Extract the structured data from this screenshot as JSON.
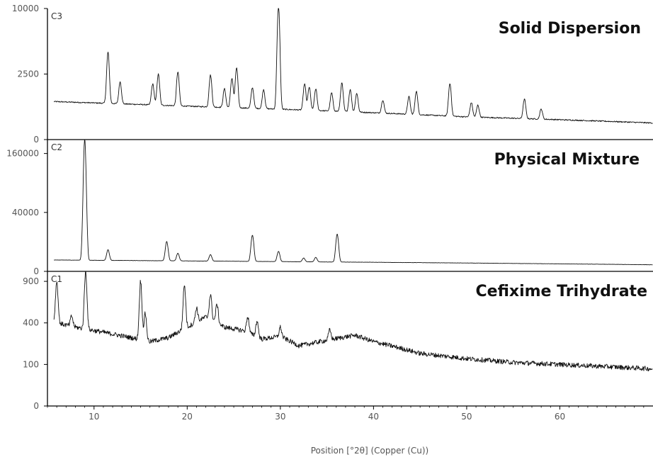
{
  "chart_data": {
    "type": "line",
    "xlabel": "Position [°2θ] (Copper (Cu))",
    "x_ticks": [
      10,
      20,
      30,
      40,
      50,
      60
    ],
    "xlim": [
      5,
      70
    ],
    "panels": [
      {
        "id": "C3",
        "title": "Solid Dispersion",
        "y_ticks": [
          0,
          2500,
          10000
        ],
        "ylim": [
          0,
          10000
        ],
        "y_scale": "sqrt",
        "baseline": [
          [
            5,
            850
          ],
          [
            20,
            650
          ],
          [
            35,
            480
          ],
          [
            50,
            300
          ],
          [
            70,
            160
          ]
        ],
        "peaks": [
          [
            11.5,
            3700
          ],
          [
            12.8,
            1200
          ],
          [
            16.3,
            1100
          ],
          [
            16.9,
            1800
          ],
          [
            19.0,
            2000
          ],
          [
            22.5,
            1800
          ],
          [
            24.0,
            900
          ],
          [
            24.8,
            1600
          ],
          [
            25.3,
            2400
          ],
          [
            27.0,
            1000
          ],
          [
            28.2,
            900
          ],
          [
            29.8,
            10000
          ],
          [
            32.6,
            1300
          ],
          [
            33.1,
            1100
          ],
          [
            33.8,
            1000
          ],
          [
            35.5,
            800
          ],
          [
            36.6,
            1400
          ],
          [
            37.5,
            1000
          ],
          [
            38.2,
            800
          ],
          [
            41.0,
            500
          ],
          [
            43.8,
            700
          ],
          [
            44.6,
            1000
          ],
          [
            48.2,
            1500
          ],
          [
            50.5,
            500
          ],
          [
            51.2,
            400
          ],
          [
            56.2,
            700
          ],
          [
            58.0,
            300
          ]
        ]
      },
      {
        "id": "C2",
        "title": "Physical Mixture",
        "y_ticks": [
          0,
          40000,
          160000
        ],
        "ylim": [
          0,
          200000
        ],
        "y_scale": "sqrt",
        "baseline": [
          [
            5,
            1500
          ],
          [
            30,
            1100
          ],
          [
            50,
            800
          ],
          [
            70,
            500
          ]
        ],
        "peaks": [
          [
            9.0,
            200000
          ],
          [
            11.5,
            4000
          ],
          [
            17.8,
            9000
          ],
          [
            19.0,
            2500
          ],
          [
            22.5,
            2000
          ],
          [
            27.0,
            14000
          ],
          [
            29.8,
            3500
          ],
          [
            32.5,
            1000
          ],
          [
            33.8,
            1200
          ],
          [
            36.1,
            15000
          ]
        ]
      },
      {
        "id": "C1",
        "title": "Cefixime Trihydrate",
        "y_ticks": [
          0,
          100,
          400,
          900
        ],
        "ylim": [
          0,
          1050
        ],
        "y_scale": "sqrt",
        "baseline": [
          [
            5,
            420
          ],
          [
            8,
            360
          ],
          [
            12,
            300
          ],
          [
            16,
            240
          ],
          [
            18,
            270
          ],
          [
            20,
            360
          ],
          [
            22,
            460
          ],
          [
            24,
            360
          ],
          [
            26,
            330
          ],
          [
            28,
            260
          ],
          [
            30,
            280
          ],
          [
            32,
            210
          ],
          [
            35,
            250
          ],
          [
            38,
            290
          ],
          [
            40,
            240
          ],
          [
            45,
            160
          ],
          [
            50,
            130
          ],
          [
            55,
            110
          ],
          [
            60,
            100
          ],
          [
            70,
            80
          ]
        ],
        "peaks": [
          [
            6.0,
            500
          ],
          [
            7.6,
            100
          ],
          [
            9.1,
            700
          ],
          [
            15.0,
            650
          ],
          [
            15.5,
            250
          ],
          [
            19.7,
            500
          ],
          [
            21.0,
            150
          ],
          [
            22.5,
            280
          ],
          [
            23.2,
            200
          ],
          [
            26.5,
            150
          ],
          [
            27.5,
            140
          ],
          [
            30.0,
            80
          ],
          [
            35.3,
            80
          ]
        ]
      }
    ]
  }
}
